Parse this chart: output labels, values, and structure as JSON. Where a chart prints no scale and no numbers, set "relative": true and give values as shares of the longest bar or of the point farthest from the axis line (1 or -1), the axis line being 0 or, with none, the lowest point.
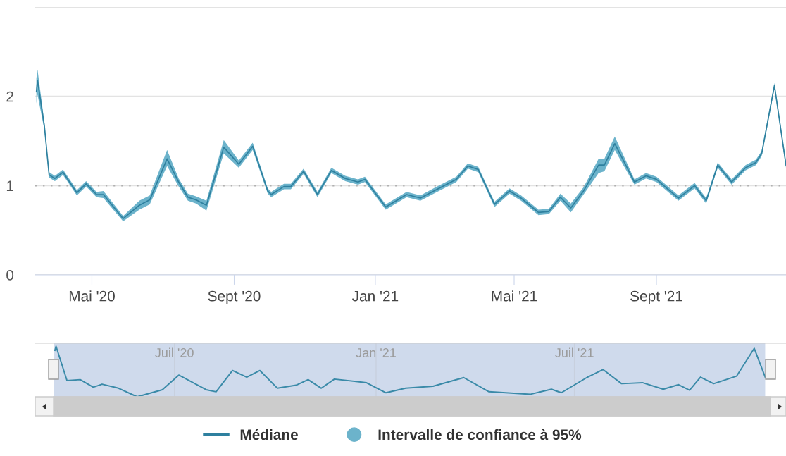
{
  "chart_data": [
    {
      "type": "line",
      "legend": "bottom",
      "grid": "y",
      "x": [
        "2020-03-14",
        "2020-03-15",
        "2020-03-21",
        "2020-03-25",
        "2020-03-30",
        "2020-04-06",
        "2020-04-18",
        "2020-04-26",
        "2020-05-05",
        "2020-05-11",
        "2020-05-28",
        "2020-06-11",
        "2020-06-20",
        "2020-07-05",
        "2020-07-15",
        "2020-07-23",
        "2020-07-30",
        "2020-08-08",
        "2020-08-23",
        "2020-09-05",
        "2020-09-17",
        "2020-09-30",
        "2020-10-03",
        "2020-10-14",
        "2020-10-20",
        "2020-10-31",
        "2020-11-12",
        "2020-11-24",
        "2020-12-06",
        "2020-12-17",
        "2020-12-23",
        "2021-01-10",
        "2021-01-28",
        "2021-02-09",
        "2021-02-22",
        "2021-03-12",
        "2021-03-22",
        "2021-03-31",
        "2021-04-14",
        "2021-04-27",
        "2021-05-07",
        "2021-05-22",
        "2021-05-31",
        "2021-06-10",
        "2021-06-19",
        "2021-06-30",
        "2021-07-13",
        "2021-07-18",
        "2021-07-27",
        "2021-08-13",
        "2021-08-23",
        "2021-09-01",
        "2021-09-20",
        "2021-10-04",
        "2021-10-14",
        "2021-10-24",
        "2021-11-05",
        "2021-11-17",
        "2021-11-26",
        "2021-12-01",
        "2021-12-12",
        "2021-12-22"
      ],
      "series": [
        {
          "name": "Médiane",
          "color": "#2e809f",
          "values": [
            2.05,
            2.18,
            1.66,
            1.12,
            1.08,
            1.15,
            0.92,
            1.02,
            0.9,
            0.9,
            0.63,
            0.78,
            0.84,
            1.3,
            1.04,
            0.87,
            0.84,
            0.78,
            1.43,
            1.24,
            1.44,
            0.94,
            0.9,
            0.99,
            0.99,
            1.16,
            0.9,
            1.17,
            1.08,
            1.04,
            1.07,
            0.76,
            0.9,
            0.86,
            0.95,
            1.07,
            1.22,
            1.18,
            0.79,
            0.94,
            0.86,
            0.7,
            0.71,
            0.87,
            0.75,
            0.94,
            1.23,
            1.23,
            1.47,
            1.04,
            1.11,
            1.07,
            0.86,
            1.0,
            0.83,
            1.23,
            1.04,
            1.2,
            1.26,
            1.36,
            2.12,
            1.23
          ],
          "lower": [
            1.92,
            2.02,
            1.62,
            1.09,
            1.05,
            1.12,
            0.89,
            0.99,
            0.87,
            0.86,
            0.6,
            0.73,
            0.79,
            1.22,
            0.99,
            0.83,
            0.8,
            0.72,
            1.36,
            1.2,
            1.4,
            0.91,
            0.87,
            0.96,
            0.96,
            1.13,
            0.87,
            1.14,
            1.05,
            1.01,
            1.04,
            0.73,
            0.87,
            0.83,
            0.92,
            1.04,
            1.19,
            1.15,
            0.76,
            0.91,
            0.83,
            0.67,
            0.68,
            0.83,
            0.7,
            0.9,
            1.14,
            1.16,
            1.4,
            1.01,
            1.08,
            1.04,
            0.83,
            0.97,
            0.8,
            1.2,
            1.01,
            1.17,
            1.23,
            1.33,
            2.09,
            1.2
          ],
          "upper": [
            2.2,
            2.3,
            1.7,
            1.15,
            1.11,
            1.18,
            0.95,
            1.05,
            0.93,
            0.94,
            0.66,
            0.83,
            0.89,
            1.4,
            1.08,
            0.91,
            0.88,
            0.83,
            1.51,
            1.28,
            1.48,
            0.97,
            0.93,
            1.02,
            1.02,
            1.19,
            0.93,
            1.2,
            1.11,
            1.07,
            1.1,
            0.79,
            0.93,
            0.89,
            0.98,
            1.1,
            1.25,
            1.21,
            0.82,
            0.97,
            0.89,
            0.73,
            0.74,
            0.91,
            0.8,
            0.98,
            1.3,
            1.3,
            1.55,
            1.07,
            1.14,
            1.1,
            0.89,
            1.03,
            0.86,
            1.26,
            1.07,
            1.23,
            1.29,
            1.39,
            2.15,
            1.26
          ]
        },
        {
          "name": "Intervalle de confiance à 95%",
          "type": "area",
          "color": "#6cb3cb",
          "values": [
            null,
            null,
            null,
            null,
            null,
            null,
            null,
            null,
            null,
            null,
            null,
            null,
            null,
            null,
            null,
            null,
            null,
            null,
            null,
            null,
            null,
            null,
            null,
            null,
            null,
            null,
            null,
            null,
            null,
            null,
            null,
            null,
            null,
            null,
            null,
            null,
            null,
            null,
            null,
            null,
            null,
            null,
            null,
            null,
            null,
            null,
            null,
            null,
            null,
            null,
            null,
            null,
            null,
            null,
            null,
            null,
            null,
            null,
            null,
            null,
            null,
            null
          ]
        }
      ],
      "xlim": [
        "2020-03-13",
        "2021-12-22"
      ],
      "xticks": [
        {
          "value": "2020-05-01",
          "label": "Mai '20"
        },
        {
          "value": "2020-09-01",
          "label": "Sept '20"
        },
        {
          "value": "2021-01-01",
          "label": "Jan '21"
        },
        {
          "value": "2021-05-01",
          "label": "Mai '21"
        },
        {
          "value": "2021-09-01",
          "label": "Sept '21"
        }
      ],
      "ylim": [
        0,
        3
      ],
      "yticks": [
        0,
        1,
        2,
        {
          "value": 3,
          "label": null
        }
      ],
      "ref_lines": [
        {
          "axis": "y",
          "value": 1,
          "color": "#b0b0b0",
          "line_style": "dotted"
        }
      ]
    },
    {
      "type": "line",
      "relative": true,
      "grid": "x",
      "x": [
        "2020-03-14",
        "2020-03-15",
        "2020-03-25",
        "2020-04-06",
        "2020-04-18",
        "2020-04-26",
        "2020-05-11",
        "2020-05-28",
        "2020-06-20",
        "2020-07-05",
        "2020-07-30",
        "2020-08-08",
        "2020-08-23",
        "2020-09-05",
        "2020-09-17",
        "2020-10-03",
        "2020-10-20",
        "2020-10-31",
        "2020-11-12",
        "2020-11-24",
        "2020-12-23",
        "2021-01-10",
        "2021-01-28",
        "2021-02-22",
        "2021-03-22",
        "2021-04-14",
        "2021-05-22",
        "2021-06-10",
        "2021-06-19",
        "2021-07-13",
        "2021-07-27",
        "2021-08-13",
        "2021-09-01",
        "2021-09-20",
        "2021-10-04",
        "2021-10-14",
        "2021-10-24",
        "2021-11-05",
        "2021-11-26",
        "2021-12-12",
        "2021-12-22"
      ],
      "series": [
        {
          "color": "#3a8aa8",
          "values": [
            0.92,
            1.0,
            0.32,
            0.34,
            0.19,
            0.25,
            0.17,
            0,
            0.14,
            0.43,
            0.14,
            0.1,
            0.52,
            0.39,
            0.52,
            0.17,
            0.23,
            0.34,
            0.17,
            0.35,
            0.28,
            0.08,
            0.17,
            0.21,
            0.38,
            0.1,
            0.05,
            0.15,
            0.08,
            0.39,
            0.54,
            0.26,
            0.28,
            0.15,
            0.24,
            0.13,
            0.39,
            0.26,
            0.41,
            0.96,
            0.39
          ]
        }
      ],
      "xlim": [
        "2020-02-25",
        "2022-01-10"
      ],
      "xticks": [
        {
          "value": "2020-07-01",
          "label": "Juil '20"
        },
        {
          "value": "2021-01-01",
          "label": "Jan '21"
        },
        {
          "value": "2021-07-01",
          "label": "Juil '21"
        }
      ],
      "bands": [
        {
          "axis": "x",
          "from": "2020-03-13",
          "to": "2021-12-22",
          "color": "#cfdaec"
        }
      ]
    }
  ]
}
